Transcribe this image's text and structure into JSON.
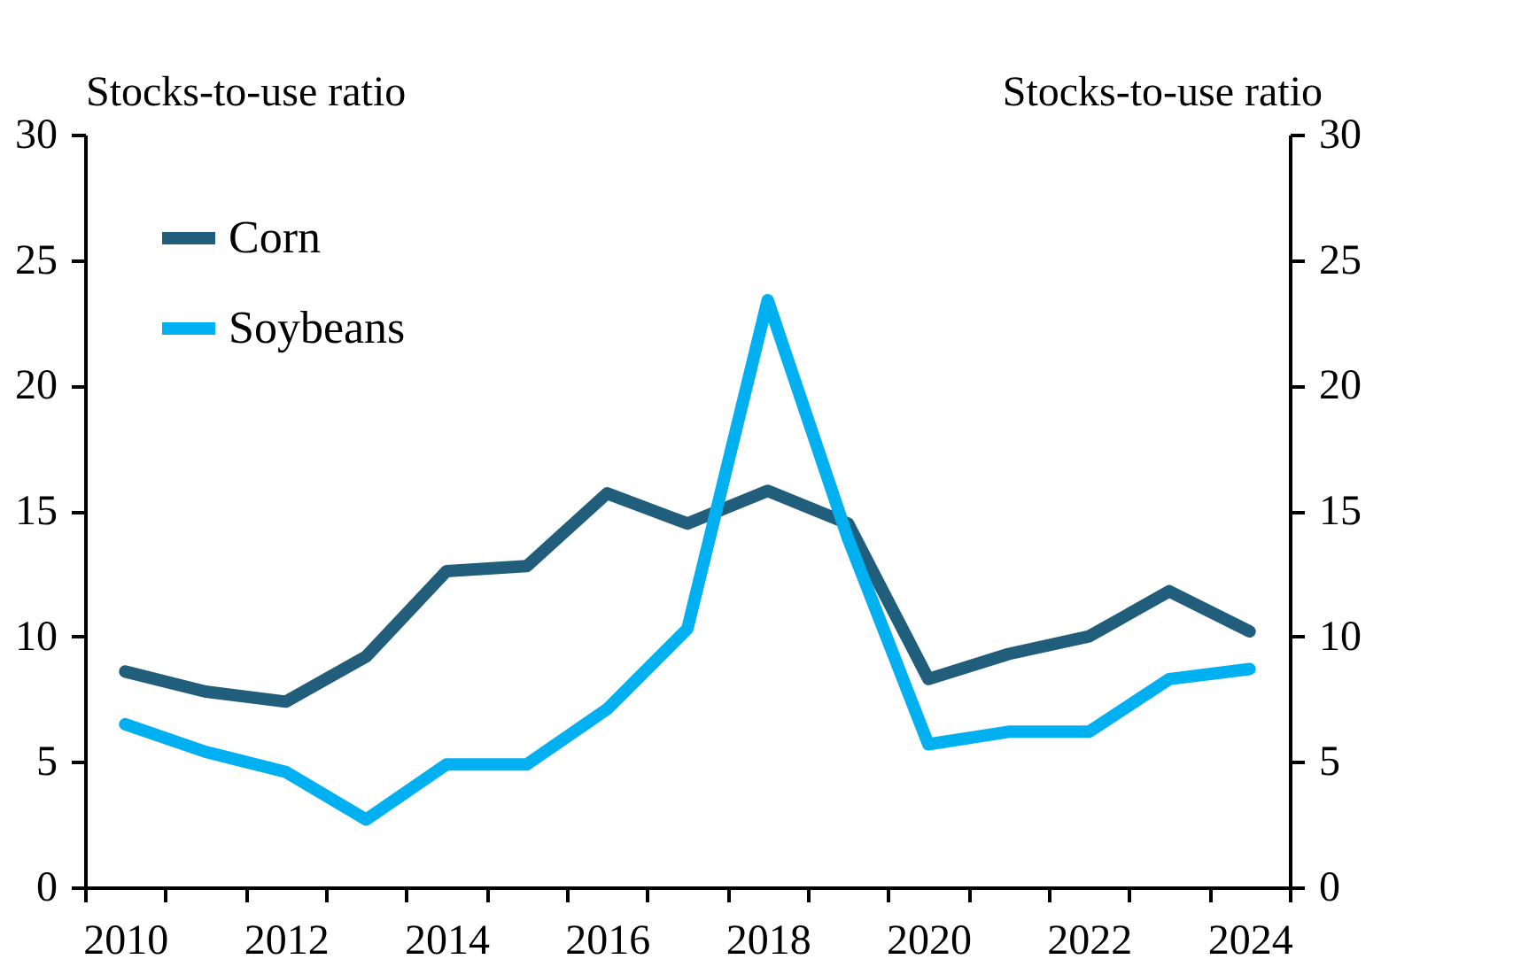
{
  "chart_data": {
    "type": "line",
    "ylabel": "Stocks-to-use ratio",
    "y2label": "Stocks-to-use ratio",
    "categories": [
      "2010",
      null,
      "2012",
      null,
      "2014",
      null,
      "2016",
      null,
      "2018",
      null,
      "2020",
      null,
      "2022",
      null,
      "2024"
    ],
    "series": [
      {
        "name": "Corn",
        "color": "#215e7b",
        "values": [
          8.6,
          7.8,
          7.4,
          9.2,
          12.6,
          12.8,
          15.7,
          14.5,
          15.8,
          14.5,
          8.3,
          9.3,
          10.0,
          11.8,
          10.2
        ]
      },
      {
        "name": "Soybeans",
        "color": "#00b0f0",
        "values": [
          6.5,
          5.4,
          4.6,
          2.7,
          4.9,
          4.9,
          7.1,
          10.3,
          23.4,
          13.9,
          5.7,
          6.2,
          6.2,
          8.3,
          8.7
        ]
      }
    ],
    "ylim": [
      0,
      30
    ],
    "yticks": [
      0,
      5,
      10,
      15,
      20,
      25,
      30
    ],
    "y2lim": [
      0,
      30
    ],
    "y2ticks": [
      0,
      5,
      10,
      15,
      20,
      25,
      30
    ],
    "legend": "top left",
    "grid": false,
    "marker": "none",
    "line_style": "solid"
  }
}
